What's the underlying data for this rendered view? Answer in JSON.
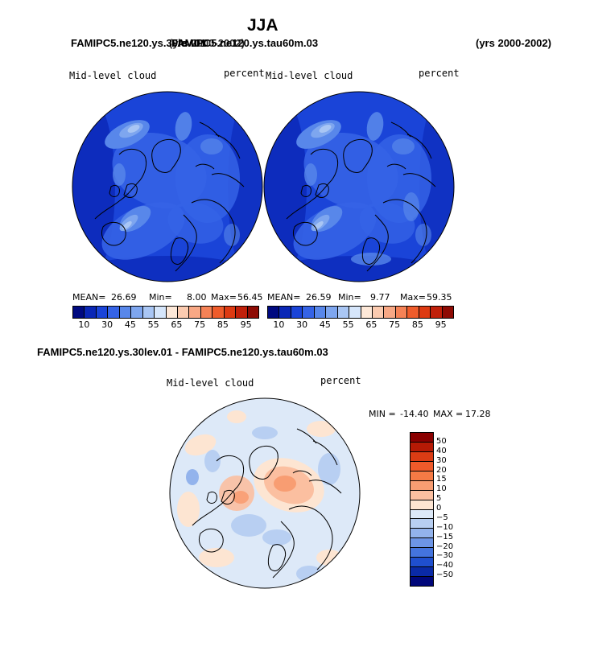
{
  "page": {
    "title": "JJA",
    "top_left_header": "FAMIPC5.ne120.ys.30lev.01",
    "top_left_header_overlap": "FAMIPC5.ne120.ys.tau60m.03",
    "top_left_years": "(yrs 2000-2002)",
    "top_right_years": "(yrs 2000-2002)",
    "bottom_header": "FAMIPC5.ne120.ys.30lev.01 - FAMIPC5.ne120.ys.tau60m.03"
  },
  "chart_data": [
    {
      "type": "heatmap",
      "projection": "north-polar-stereographic",
      "title": "Mid-level cloud",
      "units": "percent",
      "stats": {
        "mean_label": "MEAN=",
        "mean": "26.69",
        "min_label": "Min=",
        "min": "8.00",
        "max_label": "Max=",
        "max": "56.45"
      },
      "colorbar": {
        "levels": [
          10,
          15,
          20,
          25,
          30,
          35,
          40,
          45,
          50,
          55,
          60,
          65,
          70,
          75,
          80,
          85,
          90,
          95
        ],
        "tick_labels": [
          "10",
          "30",
          "45",
          "55",
          "65",
          "75",
          "85",
          "95"
        ],
        "colors": [
          "#000a80",
          "#0a27b6",
          "#1a44d8",
          "#3563e6",
          "#5887ea",
          "#7ea6ef",
          "#a9c6f4",
          "#d6e6fb",
          "#fde8d8",
          "#fbcbb0",
          "#f8a885",
          "#f58256",
          "#ef5c2b",
          "#dd3a12",
          "#c0200a",
          "#8e0b04"
        ]
      }
    },
    {
      "type": "heatmap",
      "projection": "north-polar-stereographic",
      "title": "Mid-level cloud",
      "units": "percent",
      "stats": {
        "mean_label": "MEAN=",
        "mean": "26.59",
        "min_label": "Min=",
        "min": "9.77",
        "max_label": "Max=",
        "max": "59.35"
      },
      "colorbar": {
        "levels": [
          10,
          15,
          20,
          25,
          30,
          35,
          40,
          45,
          50,
          55,
          60,
          65,
          70,
          75,
          80,
          85,
          90,
          95
        ],
        "tick_labels": [
          "10",
          "30",
          "45",
          "55",
          "65",
          "75",
          "85",
          "95"
        ],
        "colors": [
          "#000a80",
          "#0a27b6",
          "#1a44d8",
          "#3563e6",
          "#5887ea",
          "#7ea6ef",
          "#a9c6f4",
          "#d6e6fb",
          "#fde8d8",
          "#fbcbb0",
          "#f8a885",
          "#f58256",
          "#ef5c2b",
          "#dd3a12",
          "#c0200a",
          "#8e0b04"
        ]
      }
    },
    {
      "type": "heatmap",
      "projection": "north-polar-stereographic",
      "title": "Mid-level cloud",
      "units": "percent",
      "stats": {
        "min_label": "MIN =",
        "min": "-14.40",
        "max_label": "MAX =",
        "max": "17.28"
      },
      "colorbar": {
        "orientation": "vertical",
        "levels": [
          50,
          40,
          30,
          20,
          15,
          10,
          5,
          0,
          -5,
          -10,
          -15,
          -20,
          -30,
          -40,
          -50
        ],
        "tick_labels": [
          "50",
          "40",
          "30",
          "20",
          "15",
          "10",
          "5",
          "0",
          "−5",
          "−10",
          "−15",
          "−20",
          "−30",
          "−40",
          "−50"
        ],
        "colors": [
          "#8a0000",
          "#b61a05",
          "#dc3c14",
          "#ef5a2a",
          "#f57a45",
          "#f89d72",
          "#fbbfa0",
          "#fde5d2",
          "#dde9f8",
          "#b8cff2",
          "#93b3ec",
          "#6d95e6",
          "#4474de",
          "#1f4fce",
          "#0a2aa6",
          "#00077a"
        ]
      }
    }
  ]
}
